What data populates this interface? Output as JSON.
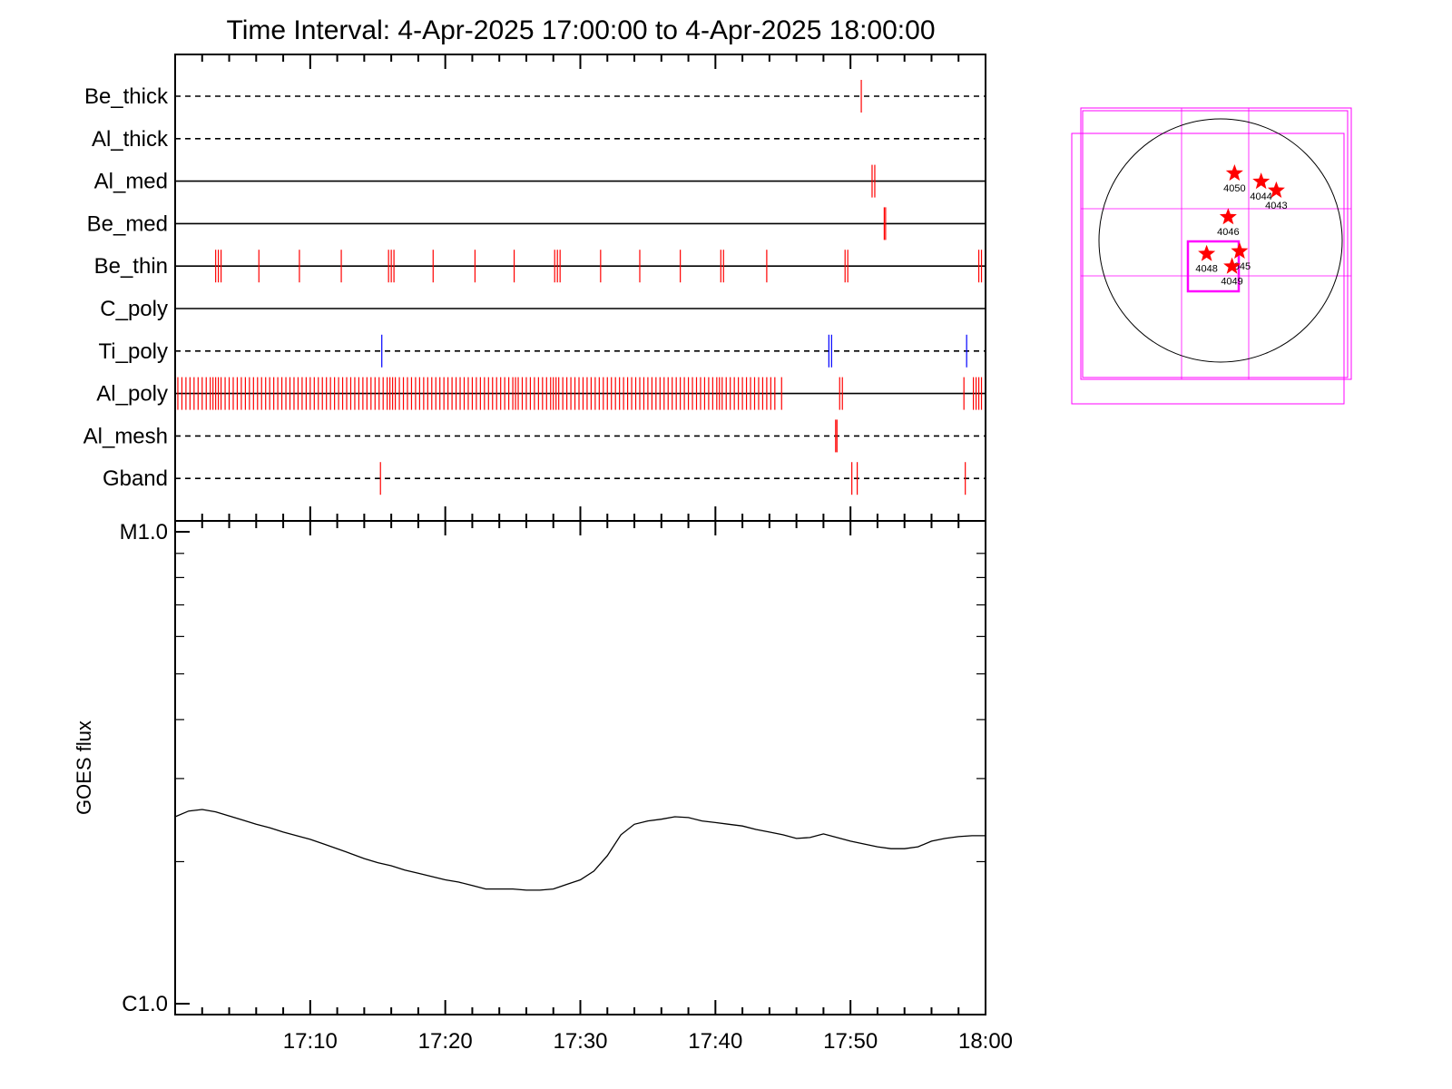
{
  "title": "Time Interval:  4-Apr-2025 17:00:00 to  4-Apr-2025 18:00:00",
  "colors": {
    "event": "#ff0000",
    "ti_event": "#0000ff",
    "line": "#000000",
    "fov": "#ff00ff",
    "star": "#ff0000"
  },
  "chart_data": [
    {
      "type": "event-timeline",
      "x_unit": "minutes after 17:00",
      "xlim": [
        0,
        60
      ],
      "rows": [
        {
          "name": "Be_thick",
          "style": "dashed",
          "color": "#ff0000",
          "events": [
            50.8
          ]
        },
        {
          "name": "Al_thick",
          "style": "dashed",
          "color": "#ff0000",
          "events": []
        },
        {
          "name": "Al_med",
          "style": "solid",
          "color": "#ff0000",
          "events": [
            51.6,
            51.8
          ]
        },
        {
          "name": "Be_med",
          "style": "solid",
          "color": "#ff0000",
          "events": [
            52.5,
            52.6
          ]
        },
        {
          "name": "Be_thin",
          "style": "solid",
          "color": "#ff0000",
          "events": [
            3.0,
            3.2,
            3.4,
            6.2,
            9.2,
            12.3,
            15.8,
            16.0,
            16.2,
            19.1,
            22.2,
            25.1,
            28.1,
            28.3,
            28.5,
            31.5,
            34.4,
            37.4,
            40.4,
            40.6,
            43.8,
            49.6,
            49.8,
            59.5,
            59.7
          ]
        },
        {
          "name": "C_poly",
          "style": "solid",
          "color": "#ff0000",
          "events": []
        },
        {
          "name": "Ti_poly",
          "style": "dashed",
          "color": "#0000ff",
          "events": [
            15.3,
            48.4,
            48.6,
            58.6
          ]
        },
        {
          "name": "Al_poly",
          "style": "solid",
          "color": "#ff0000",
          "events": [
            0.2,
            0.5,
            0.8,
            1.1,
            1.4,
            1.7,
            2.0,
            2.3,
            2.6,
            2.8,
            3.0,
            3.2,
            3.4,
            3.7,
            4.0,
            4.3,
            4.6,
            4.9,
            5.2,
            5.5,
            5.8,
            6.1,
            6.4,
            6.7,
            7.0,
            7.3,
            7.6,
            7.9,
            8.2,
            8.5,
            8.8,
            9.1,
            9.4,
            9.7,
            10.0,
            10.3,
            10.6,
            10.9,
            11.2,
            11.5,
            11.8,
            12.1,
            12.4,
            12.7,
            13.0,
            13.3,
            13.6,
            13.9,
            14.2,
            14.5,
            14.8,
            15.1,
            15.4,
            15.7,
            15.9,
            16.1,
            16.3,
            16.6,
            16.9,
            17.2,
            17.5,
            17.8,
            18.1,
            18.4,
            18.7,
            19.0,
            19.3,
            19.6,
            19.9,
            20.2,
            20.5,
            20.8,
            21.1,
            21.4,
            21.7,
            22.0,
            22.3,
            22.6,
            22.9,
            23.2,
            23.5,
            23.8,
            24.1,
            24.4,
            24.7,
            25.0,
            25.2,
            25.4,
            25.7,
            26.0,
            26.3,
            26.6,
            26.9,
            27.2,
            27.5,
            27.8,
            28.0,
            28.2,
            28.4,
            28.7,
            29.0,
            29.3,
            29.6,
            29.9,
            30.2,
            30.5,
            30.8,
            31.1,
            31.4,
            31.7,
            32.0,
            32.3,
            32.6,
            32.9,
            33.2,
            33.5,
            33.8,
            34.1,
            34.4,
            34.7,
            35.0,
            35.3,
            35.6,
            35.9,
            36.2,
            36.5,
            36.8,
            37.1,
            37.4,
            37.7,
            38.0,
            38.3,
            38.6,
            38.9,
            39.2,
            39.5,
            39.8,
            40.1,
            40.3,
            40.5,
            40.8,
            41.1,
            41.4,
            41.7,
            42.0,
            42.3,
            42.6,
            42.9,
            43.2,
            43.5,
            43.8,
            44.1,
            44.4,
            44.9,
            49.2,
            49.4,
            58.4,
            59.1,
            59.3,
            59.5,
            59.7
          ]
        },
        {
          "name": "Al_mesh",
          "style": "dashed",
          "color": "#ff0000",
          "events": [
            48.9,
            49.0
          ]
        },
        {
          "name": "Gband",
          "style": "dashed",
          "color": "#ff0000",
          "events": [
            15.2,
            50.1,
            50.5,
            58.5
          ]
        }
      ]
    },
    {
      "type": "line",
      "x_unit": "minutes after 17:00",
      "xlim": [
        0,
        60
      ],
      "ylabel": "GOES flux",
      "yscale": "log",
      "ylim": [
        1e-06,
        1e-05
      ],
      "y_tick_labels": [
        {
          "value": 1e-05,
          "label": "M1.0"
        },
        {
          "value": 1e-06,
          "label": "C1.0"
        }
      ],
      "x_ticks": [
        {
          "value": 10,
          "label": "17:10"
        },
        {
          "value": 20,
          "label": "17:20"
        },
        {
          "value": 30,
          "label": "17:30"
        },
        {
          "value": 40,
          "label": "17:40"
        },
        {
          "value": 50,
          "label": "17:50"
        },
        {
          "value": 60,
          "label": "18:00"
        }
      ],
      "x": [
        0,
        1,
        2,
        3,
        4,
        5,
        6,
        7,
        8,
        9,
        10,
        11,
        12,
        13,
        14,
        15,
        16,
        17,
        18,
        19,
        20,
        21,
        22,
        23,
        24,
        25,
        26,
        27,
        28,
        29,
        30,
        31,
        32,
        33,
        34,
        35,
        36,
        37,
        38,
        39,
        40,
        41,
        42,
        43,
        44,
        45,
        46,
        47,
        48,
        49,
        50,
        51,
        52,
        53,
        54,
        55,
        56,
        57,
        58,
        59,
        60
      ],
      "y": [
        2.49e-06,
        2.56e-06,
        2.58e-06,
        2.55e-06,
        2.5e-06,
        2.45e-06,
        2.4e-06,
        2.36e-06,
        2.31e-06,
        2.27e-06,
        2.23e-06,
        2.18e-06,
        2.13e-06,
        2.08e-06,
        2.03e-06,
        1.99e-06,
        1.96e-06,
        1.92e-06,
        1.89e-06,
        1.86e-06,
        1.83e-06,
        1.81e-06,
        1.78e-06,
        1.75e-06,
        1.75e-06,
        1.75e-06,
        1.74e-06,
        1.74e-06,
        1.75e-06,
        1.79e-06,
        1.83e-06,
        1.91e-06,
        2.06e-06,
        2.28e-06,
        2.4e-06,
        2.44e-06,
        2.46e-06,
        2.49e-06,
        2.48e-06,
        2.44e-06,
        2.42e-06,
        2.4e-06,
        2.38e-06,
        2.34e-06,
        2.31e-06,
        2.28e-06,
        2.24e-06,
        2.25e-06,
        2.29e-06,
        2.25e-06,
        2.21e-06,
        2.18e-06,
        2.15e-06,
        2.13e-06,
        2.13e-06,
        2.15e-06,
        2.21e-06,
        2.24e-06,
        2.26e-06,
        2.27e-06,
        2.27e-06
      ]
    },
    {
      "type": "solar-map",
      "note_units": "arcsec, solar disk centered at 0,0 with radius 960",
      "disk_radius": 960,
      "active_regions": [
        {
          "label": "4050",
          "x": 110,
          "y": 530
        },
        {
          "label": "4044",
          "x": 320,
          "y": 465
        },
        {
          "label": "4043",
          "x": 440,
          "y": 395
        },
        {
          "label": "4046",
          "x": 60,
          "y": 185
        },
        {
          "label": "4045",
          "x": 150,
          "y": -85
        },
        {
          "label": "4048",
          "x": -110,
          "y": -105
        },
        {
          "label": "4049",
          "x": 90,
          "y": -205
        }
      ]
    }
  ]
}
